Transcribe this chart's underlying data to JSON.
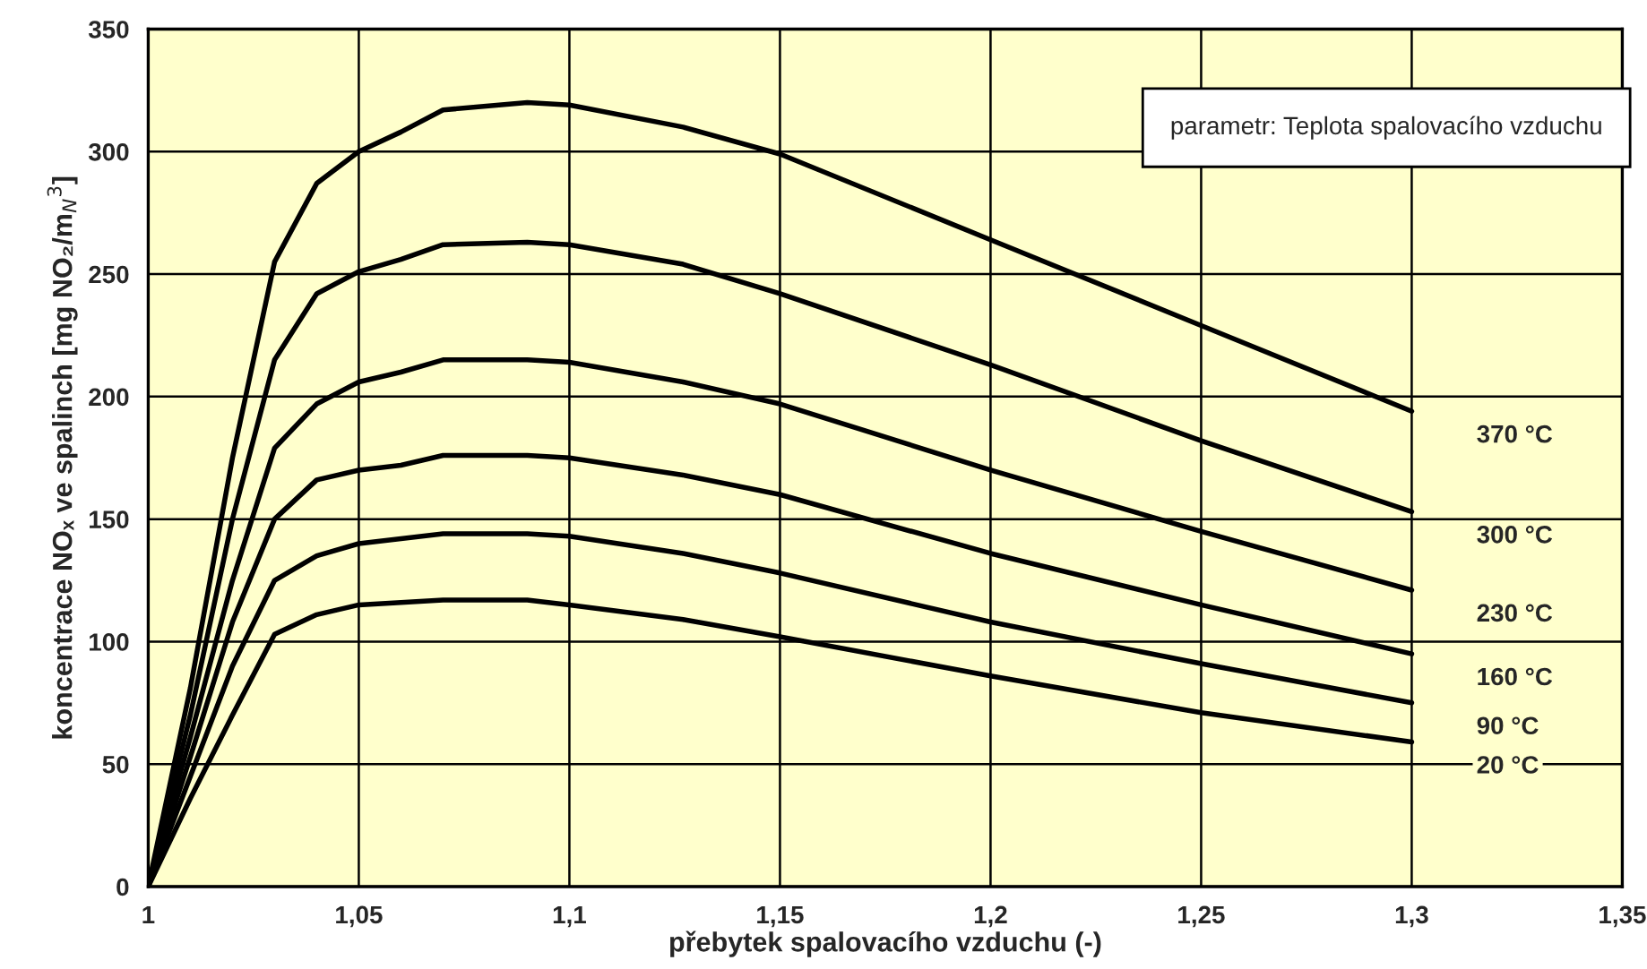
{
  "chart_data": {
    "type": "line",
    "xlabel": "přebytek spalovacího vzduchu (-)",
    "ylabel": "koncentrace NOₓ ve spalinch [mg NO₂/m$_{N}$$^{3}$]",
    "annotations": [
      "parametr: Teplota spalovacího vzduchu"
    ],
    "x": [
      1,
      1.01,
      1.02,
      1.03,
      1.04,
      1.05,
      1.06,
      1.07,
      1.09,
      1.1,
      1.127,
      1.15,
      1.2,
      1.25,
      1.3
    ],
    "series": [
      {
        "name": "370 °C",
        "color": "#000000",
        "values": [
          0,
          81,
          175,
          255,
          287,
          300,
          308,
          317,
          320,
          319,
          310,
          299,
          264,
          229,
          194
        ]
      },
      {
        "name": "300 °C",
        "color": "#000000",
        "values": [
          0,
          70,
          150,
          215,
          242,
          251,
          256,
          262,
          263,
          262,
          254,
          242,
          213,
          182,
          153
        ]
      },
      {
        "name": "230 °C",
        "color": "#000000",
        "values": [
          0,
          61,
          125,
          179,
          197,
          206,
          210,
          215,
          215,
          214,
          206,
          197,
          170,
          145,
          121
        ]
      },
      {
        "name": "160 °C",
        "color": "#000000",
        "values": [
          0,
          53,
          108,
          150,
          166,
          170,
          172,
          176,
          176,
          175,
          168,
          160,
          136,
          115,
          95
        ]
      },
      {
        "name": "90 °C",
        "color": "#000000",
        "values": [
          0,
          45,
          90,
          125,
          135,
          140,
          142,
          144,
          144,
          143,
          136,
          128,
          108,
          91,
          75
        ]
      },
      {
        "name": "20 °C",
        "color": "#000000",
        "values": [
          0,
          36,
          70,
          103,
          111,
          115,
          116,
          117,
          117,
          115,
          109,
          102,
          86,
          71,
          59
        ]
      }
    ],
    "xlim": [
      1,
      1.35
    ],
    "xticks": [
      {
        "value": 1,
        "label": "1"
      },
      {
        "value": 1.05,
        "label": "1,05"
      },
      {
        "value": 1.1,
        "label": "1,1"
      },
      {
        "value": 1.15,
        "label": "1,15"
      },
      {
        "value": 1.2,
        "label": "1,2"
      },
      {
        "value": 1.25,
        "label": "1,25"
      },
      {
        "value": 1.3,
        "label": "1,3"
      },
      {
        "value": 1.35,
        "label": "1,35"
      }
    ],
    "ylim": [
      0,
      350
    ],
    "yticks": [
      0,
      50,
      100,
      150,
      200,
      250,
      300,
      350
    ],
    "grid": true,
    "legend": false,
    "marker": "none",
    "line_style": "solid"
  }
}
